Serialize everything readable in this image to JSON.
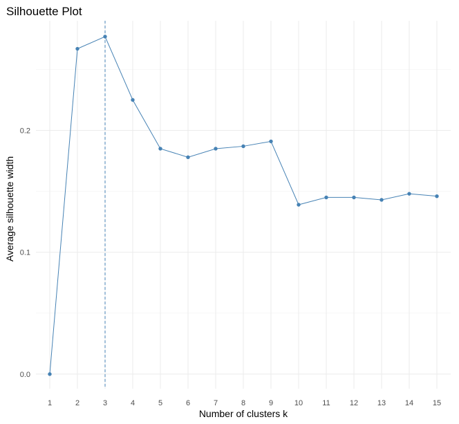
{
  "chart_data": {
    "type": "line",
    "title": "Silhouette Plot",
    "xlabel": "Number of clusters k",
    "ylabel": "Average silhouette width",
    "categories": [
      "1",
      "2",
      "3",
      "4",
      "5",
      "6",
      "7",
      "8",
      "9",
      "10",
      "11",
      "12",
      "13",
      "14",
      "15"
    ],
    "series": [
      {
        "values": [
          0.0,
          0.267,
          0.277,
          0.225,
          0.185,
          0.178,
          0.185,
          0.187,
          0.191,
          0.139,
          0.145,
          0.145,
          0.143,
          0.148,
          0.146
        ]
      }
    ],
    "y_ticks": [
      "0.0",
      "0.1",
      "0.2"
    ],
    "ylim": [
      -0.012,
      0.29
    ],
    "reference_line_x": "3",
    "grid": true,
    "colors": {
      "series": "#4682b4",
      "reference_line": "#4682b4"
    }
  }
}
